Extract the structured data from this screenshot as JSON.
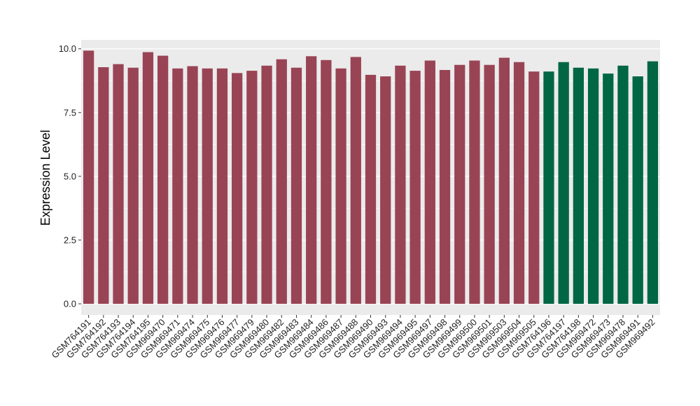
{
  "chart_data": {
    "type": "bar",
    "title": "",
    "xlabel": "",
    "ylabel": "Expression Level",
    "ylim": [
      0,
      10.35
    ],
    "yticks": [
      "0.0",
      "2.5",
      "5.0",
      "7.5",
      "10.0"
    ],
    "grid": true,
    "colors": {
      "group1": "#994455",
      "group2": "#006644",
      "panel": "#ebebeb",
      "grid": "#ffffff"
    },
    "categories": [
      "GSM764191",
      "GSM764192",
      "GSM764193",
      "GSM764194",
      "GSM764195",
      "GSM969470",
      "GSM969471",
      "GSM969474",
      "GSM969475",
      "GSM969476",
      "GSM969477",
      "GSM969479",
      "GSM969480",
      "GSM969482",
      "GSM969483",
      "GSM969484",
      "GSM969486",
      "GSM969487",
      "GSM969488",
      "GSM969490",
      "GSM969493",
      "GSM969494",
      "GSM969495",
      "GSM969497",
      "GSM969498",
      "GSM969499",
      "GSM969500",
      "GSM969501",
      "GSM969503",
      "GSM969504",
      "GSM969505",
      "GSM764196",
      "GSM764197",
      "GSM764198",
      "GSM969472",
      "GSM969473",
      "GSM969478",
      "GSM969491",
      "GSM969492"
    ],
    "values": [
      9.93,
      9.28,
      9.4,
      9.26,
      9.87,
      9.73,
      9.23,
      9.32,
      9.23,
      9.23,
      9.05,
      9.14,
      9.34,
      9.59,
      9.26,
      9.71,
      9.56,
      9.23,
      9.68,
      8.98,
      8.92,
      9.34,
      9.14,
      9.54,
      9.17,
      9.37,
      9.54,
      9.37,
      9.65,
      9.48,
      9.11,
      9.11,
      9.48,
      9.26,
      9.23,
      9.03,
      9.34,
      8.92,
      9.51
    ],
    "groups": [
      1,
      1,
      1,
      1,
      1,
      1,
      1,
      1,
      1,
      1,
      1,
      1,
      1,
      1,
      1,
      1,
      1,
      1,
      1,
      1,
      1,
      1,
      1,
      1,
      1,
      1,
      1,
      1,
      1,
      1,
      1,
      2,
      2,
      2,
      2,
      2,
      2,
      2,
      2
    ]
  }
}
